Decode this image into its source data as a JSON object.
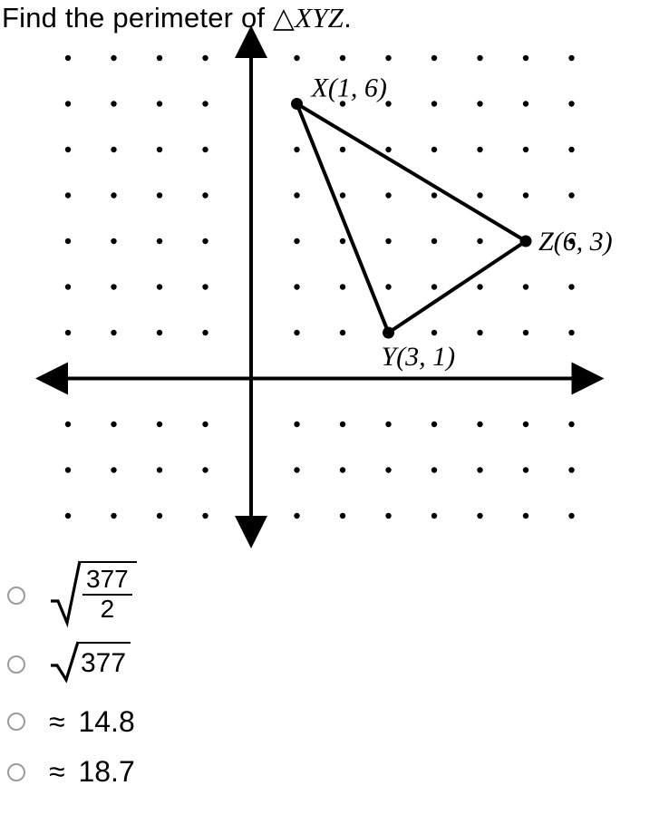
{
  "question": {
    "prefix": "Find the perimeter of ",
    "triangle_symbol": "△",
    "triangle_name": "XYZ",
    "suffix": "."
  },
  "graph": {
    "x_range": [
      -4,
      7
    ],
    "y_range": [
      -3,
      7
    ],
    "dot_color": "#000000",
    "dot_radius": 3.2,
    "axis_color": "#000000",
    "axis_stroke_width": 4,
    "triangle_stroke": 4,
    "points": {
      "X": {
        "x": 1,
        "y": 6,
        "label": "X(1, 6)"
      },
      "Y": {
        "x": 3,
        "y": 1,
        "label": "Y(3, 1)"
      },
      "Z": {
        "x": 6,
        "y": 3,
        "label": "Z(6, 3)"
      }
    },
    "label_font": "italic 28px 'Times New Roman', serif"
  },
  "options": {
    "a": {
      "kind": "sqrt_frac",
      "num": "377",
      "den": "2"
    },
    "b": {
      "kind": "sqrt",
      "radicand": "377"
    },
    "c": {
      "kind": "approx",
      "value": "14.8"
    },
    "d": {
      "kind": "approx",
      "value": "18.7",
      "truncated": true
    }
  },
  "symbols": {
    "approx": "≈",
    "radical_small": "√"
  }
}
